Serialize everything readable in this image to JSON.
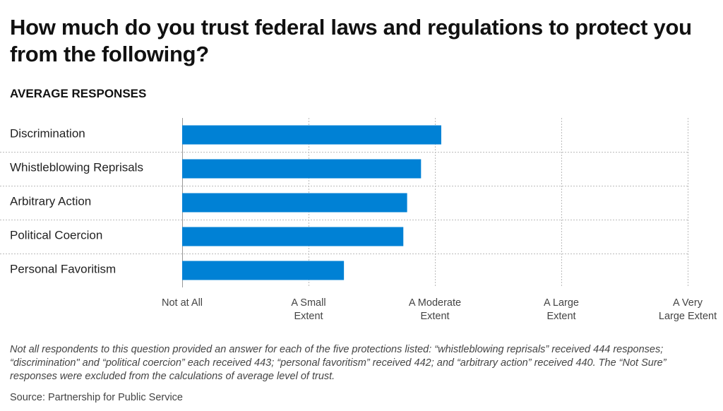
{
  "chart_data": {
    "type": "bar",
    "orientation": "horizontal",
    "title": "How much do you trust federal laws and regulations to protect you from the following?",
    "subtitle": "AVERAGE RESPONSES",
    "categories": [
      "Discrimination",
      "Whistleblowing Reprisals",
      "Arbitrary Action",
      "Political Coercion",
      "Personal Favoritism"
    ],
    "values": [
      2.05,
      1.89,
      1.78,
      1.75,
      1.28
    ],
    "xlim": [
      0,
      4
    ],
    "xticks": [
      {
        "value": 0,
        "lines": [
          "Not at All"
        ]
      },
      {
        "value": 1,
        "lines": [
          "A Small",
          "Extent"
        ]
      },
      {
        "value": 2,
        "lines": [
          "A Moderate",
          "Extent"
        ]
      },
      {
        "value": 3,
        "lines": [
          "A Large",
          "Extent"
        ]
      },
      {
        "value": 4,
        "lines": [
          "A Very",
          "Large Extent"
        ]
      }
    ],
    "xlabel": "",
    "ylabel": "",
    "grid": true,
    "legend": "none",
    "bar_color": "#0081d5",
    "grid_color": "#bbbbbb"
  },
  "note": "Not all respondents to this question provided an answer for each of the five protections listed: “whistleblowing reprisals” received 444 responses; “discrimination\" and “political coercion” each received 443; “personal favoritism” received 442; and “arbitrary action” received 440. The “Not Sure” responses were excluded from the calculations of average level of trust.",
  "source": "Source: Partnership for Public Service"
}
